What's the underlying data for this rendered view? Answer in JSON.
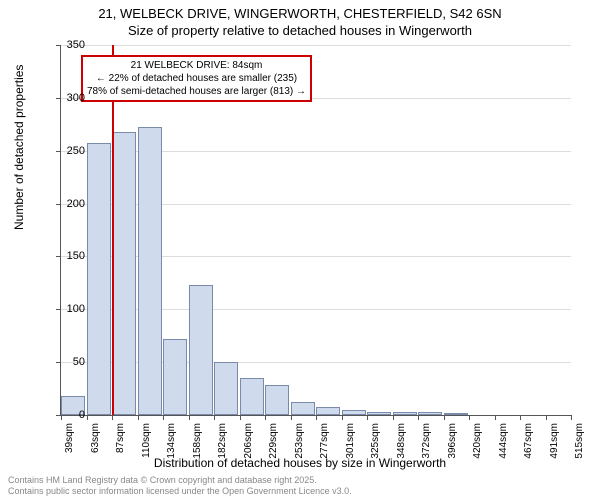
{
  "title_line1": "21, WELBECK DRIVE, WINGERWORTH, CHESTERFIELD, S42 6SN",
  "title_line2": "Size of property relative to detached houses in Wingerworth",
  "ylabel": "Number of detached properties",
  "xlabel": "Distribution of detached houses by size in Wingerworth",
  "footer_line1": "Contains HM Land Registry data © Crown copyright and database right 2025.",
  "footer_line2": "Contains public sector information licensed under the Open Government Licence v3.0.",
  "annotation": {
    "line1": "21 WELBECK DRIVE: 84sqm",
    "line2": "← 22% of detached houses are smaller (235)",
    "line3": "78% of semi-detached houses are larger (813) →"
  },
  "chart": {
    "type": "histogram",
    "ylim": [
      0,
      350
    ],
    "ytick_step": 50,
    "bar_fill": "#cfdaed",
    "bar_border": "#7a8aaa",
    "grid_color": "#dddddd",
    "marker_color": "#cc0000",
    "marker_x_index_approx": 2.0,
    "background": "#ffffff",
    "xtick_labels": [
      "39sqm",
      "63sqm",
      "87sqm",
      "110sqm",
      "134sqm",
      "158sqm",
      "182sqm",
      "206sqm",
      "229sqm",
      "253sqm",
      "277sqm",
      "301sqm",
      "325sqm",
      "348sqm",
      "372sqm",
      "396sqm",
      "420sqm",
      "444sqm",
      "467sqm",
      "491sqm",
      "515sqm"
    ],
    "values": [
      18,
      257,
      268,
      272,
      72,
      123,
      50,
      35,
      28,
      12,
      8,
      5,
      3,
      3,
      3,
      1,
      0,
      0,
      0,
      0
    ],
    "label_fontsize": 12,
    "tick_fontsize": 10,
    "title_fontsize": 13
  }
}
